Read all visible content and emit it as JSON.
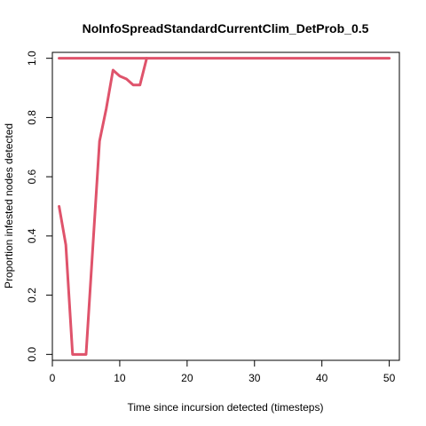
{
  "chart_data": {
    "type": "line",
    "title": "NoInfoSpreadStandardCurrentClim_DetProb_0.5",
    "xlabel": "Time since incursion detected (timesteps)",
    "ylabel": "Proportion infested nodes detected",
    "xlim": [
      0,
      51.5
    ],
    "ylim": [
      -0.02,
      1.02
    ],
    "xticks": [
      0,
      10,
      20,
      30,
      40,
      50
    ],
    "yticks": [
      0.0,
      0.2,
      0.4,
      0.6,
      0.8,
      1.0
    ],
    "xtick_labels": [
      "0",
      "10",
      "20",
      "30",
      "40",
      "50"
    ],
    "ytick_labels": [
      "0.0",
      "0.2",
      "0.4",
      "0.6",
      "0.8",
      "1.0"
    ],
    "grid": false,
    "series": [
      {
        "color": "#DF536B",
        "x": [
          1,
          2,
          3,
          4,
          5,
          6,
          7,
          8,
          9,
          10,
          11,
          12,
          13,
          14
        ],
        "y": [
          0.5,
          0.37,
          0.0,
          0.0,
          0.0,
          0.36,
          0.72,
          0.83,
          0.96,
          0.94,
          0.93,
          0.91,
          0.91,
          1.0
        ]
      },
      {
        "color": "#DF536B",
        "x": [
          1,
          50
        ],
        "y": [
          1.0,
          1.0
        ]
      }
    ]
  }
}
